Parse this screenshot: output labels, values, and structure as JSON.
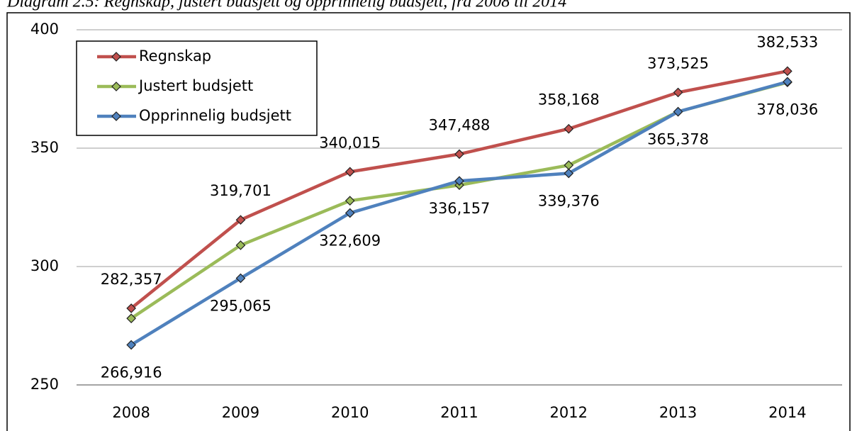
{
  "chart_data": {
    "type": "line",
    "title": "Diagram 2.5: Regnskap, justert budsjett og opprinnelig budsjett, fra 2008 til 2014",
    "categories": [
      "2008",
      "2009",
      "2010",
      "2011",
      "2012",
      "2013",
      "2014"
    ],
    "series": [
      {
        "name": "Regnskap",
        "color": "#c0504d",
        "values": [
          282.357,
          319.701,
          340.015,
          347.488,
          358.168,
          373.525,
          382.533
        ],
        "value_labels": [
          "282,357",
          "319,701",
          "340,015",
          "347,488",
          "358,168",
          "373,525",
          "382,533"
        ]
      },
      {
        "name": "Justert budsjett",
        "color": "#9bbb59",
        "values": [
          278.1,
          309,
          327.8,
          334.4,
          342.8,
          365.4,
          377.8
        ]
      },
      {
        "name": "Opprinnelig budsjett",
        "color": "#4f81bd",
        "values": [
          266.916,
          295.065,
          322.609,
          336.157,
          339.376,
          365.378,
          378.036
        ],
        "value_labels": [
          "266,916",
          "295,065",
          "322,609",
          "336,157",
          "339,376",
          "365,378",
          "378,036"
        ]
      }
    ],
    "ylim": [
      250,
      400
    ],
    "yticks": [
      250,
      300,
      350,
      400
    ],
    "grid": true,
    "legend": "top-left"
  }
}
